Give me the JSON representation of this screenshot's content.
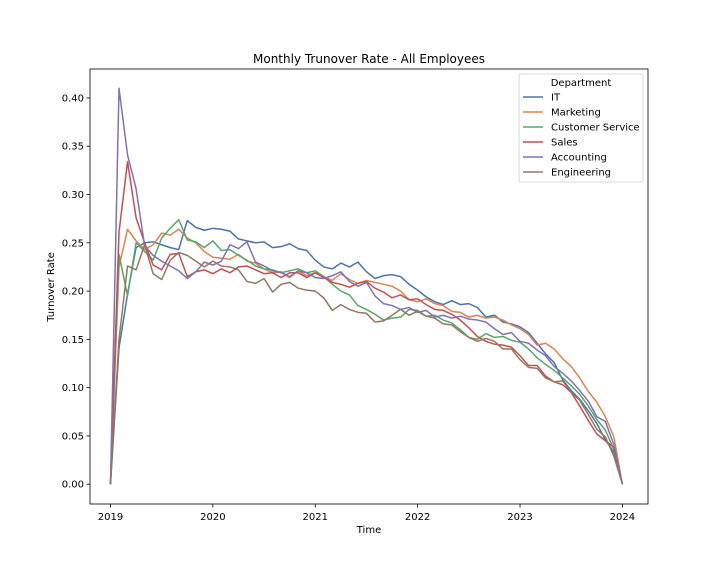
{
  "chart_data": {
    "type": "line",
    "title": "Monthly Trunover Rate - All Employees",
    "xlabel": "Time",
    "ylabel": "Turnover Rate",
    "xlim": [
      2018.8,
      2024.25
    ],
    "ylim": [
      -0.0205,
      0.43
    ],
    "x_ticks": [
      2019,
      2020,
      2021,
      2022,
      2023,
      2024
    ],
    "x_tick_labels": [
      "2019",
      "2020",
      "2021",
      "2022",
      "2023",
      "2024"
    ],
    "y_ticks": [
      0.0,
      0.05,
      0.1,
      0.15,
      0.2,
      0.25,
      0.3,
      0.35,
      0.4
    ],
    "y_tick_labels": [
      "0.00",
      "0.05",
      "0.10",
      "0.15",
      "0.20",
      "0.25",
      "0.30",
      "0.35",
      "0.40"
    ],
    "grid": false,
    "legend": {
      "title": "Department",
      "placement": "top-right"
    },
    "x_start": 2019,
    "x_step_months": 1,
    "series": [
      {
        "name": "IT",
        "color": "#4c72b0",
        "values": [
          0.0,
          0.141,
          0.197,
          0.245,
          0.25,
          0.251,
          0.248,
          0.245,
          0.243,
          0.273,
          0.266,
          0.263,
          0.265,
          0.264,
          0.262,
          0.254,
          0.252,
          0.25,
          0.251,
          0.245,
          0.246,
          0.249,
          0.244,
          0.242,
          0.232,
          0.225,
          0.223,
          0.229,
          0.225,
          0.23,
          0.22,
          0.213,
          0.216,
          0.217,
          0.215,
          0.207,
          0.201,
          0.194,
          0.189,
          0.186,
          0.19,
          0.186,
          0.187,
          0.183,
          0.173,
          0.175,
          0.168,
          0.166,
          0.163,
          0.157,
          0.146,
          0.135,
          0.126,
          0.108,
          0.097,
          0.088,
          0.076,
          0.063,
          0.046,
          0.033,
          0.0
        ]
      },
      {
        "name": "Marketing",
        "color": "#dd8452",
        "values": [
          0.0,
          0.225,
          0.264,
          0.252,
          0.243,
          0.248,
          0.26,
          0.258,
          0.264,
          0.255,
          0.25,
          0.241,
          0.235,
          0.234,
          0.233,
          0.238,
          0.231,
          0.229,
          0.223,
          0.219,
          0.22,
          0.214,
          0.221,
          0.216,
          0.219,
          0.215,
          0.211,
          0.218,
          0.212,
          0.208,
          0.211,
          0.209,
          0.207,
          0.205,
          0.2,
          0.191,
          0.189,
          0.192,
          0.187,
          0.185,
          0.179,
          0.178,
          0.173,
          0.175,
          0.172,
          0.173,
          0.17,
          0.165,
          0.161,
          0.155,
          0.144,
          0.146,
          0.14,
          0.13,
          0.122,
          0.11,
          0.096,
          0.085,
          0.07,
          0.049,
          0.0
        ]
      },
      {
        "name": "Customer Service",
        "color": "#55a868",
        "values": [
          0.0,
          0.238,
          0.195,
          0.25,
          0.241,
          0.232,
          0.255,
          0.265,
          0.274,
          0.253,
          0.251,
          0.245,
          0.252,
          0.242,
          0.243,
          0.237,
          0.232,
          0.226,
          0.223,
          0.222,
          0.219,
          0.221,
          0.223,
          0.219,
          0.221,
          0.215,
          0.207,
          0.2,
          0.196,
          0.185,
          0.181,
          0.176,
          0.17,
          0.172,
          0.173,
          0.181,
          0.18,
          0.174,
          0.175,
          0.17,
          0.167,
          0.16,
          0.152,
          0.15,
          0.156,
          0.152,
          0.153,
          0.149,
          0.147,
          0.14,
          0.131,
          0.124,
          0.118,
          0.11,
          0.102,
          0.093,
          0.081,
          0.067,
          0.056,
          0.036,
          0.0
        ]
      },
      {
        "name": "Sales",
        "color": "#c44e52",
        "values": [
          0.0,
          0.261,
          0.334,
          0.276,
          0.25,
          0.227,
          0.222,
          0.238,
          0.239,
          0.215,
          0.22,
          0.222,
          0.218,
          0.223,
          0.219,
          0.225,
          0.226,
          0.222,
          0.218,
          0.219,
          0.214,
          0.219,
          0.219,
          0.214,
          0.219,
          0.214,
          0.209,
          0.207,
          0.204,
          0.208,
          0.21,
          0.203,
          0.199,
          0.193,
          0.196,
          0.191,
          0.192,
          0.186,
          0.181,
          0.18,
          0.176,
          0.17,
          0.162,
          0.153,
          0.148,
          0.145,
          0.144,
          0.142,
          0.133,
          0.123,
          0.123,
          0.112,
          0.106,
          0.103,
          0.095,
          0.081,
          0.066,
          0.052,
          0.045,
          0.038,
          0.0
        ]
      },
      {
        "name": "Accounting",
        "color": "#8172b3",
        "values": [
          0.0,
          0.41,
          0.341,
          0.306,
          0.247,
          0.237,
          0.231,
          0.226,
          0.221,
          0.213,
          0.22,
          0.23,
          0.227,
          0.231,
          0.248,
          0.244,
          0.251,
          0.23,
          0.226,
          0.221,
          0.219,
          0.215,
          0.221,
          0.219,
          0.214,
          0.213,
          0.216,
          0.22,
          0.21,
          0.205,
          0.209,
          0.195,
          0.187,
          0.185,
          0.181,
          0.183,
          0.178,
          0.18,
          0.173,
          0.175,
          0.172,
          0.174,
          0.171,
          0.17,
          0.168,
          0.161,
          0.155,
          0.157,
          0.148,
          0.146,
          0.139,
          0.133,
          0.122,
          0.115,
          0.107,
          0.097,
          0.086,
          0.07,
          0.065,
          0.041,
          0.0
        ]
      },
      {
        "name": "Engineering",
        "color": "#937860",
        "values": [
          0.0,
          0.15,
          0.226,
          0.222,
          0.248,
          0.218,
          0.212,
          0.232,
          0.24,
          0.237,
          0.231,
          0.225,
          0.231,
          0.226,
          0.225,
          0.222,
          0.21,
          0.208,
          0.213,
          0.199,
          0.207,
          0.209,
          0.203,
          0.201,
          0.2,
          0.193,
          0.18,
          0.186,
          0.181,
          0.178,
          0.177,
          0.168,
          0.169,
          0.175,
          0.181,
          0.175,
          0.179,
          0.174,
          0.172,
          0.166,
          0.165,
          0.158,
          0.152,
          0.148,
          0.151,
          0.148,
          0.14,
          0.14,
          0.129,
          0.121,
          0.12,
          0.11,
          0.106,
          0.107,
          0.095,
          0.087,
          0.072,
          0.057,
          0.049,
          0.029,
          0.0
        ]
      }
    ]
  }
}
